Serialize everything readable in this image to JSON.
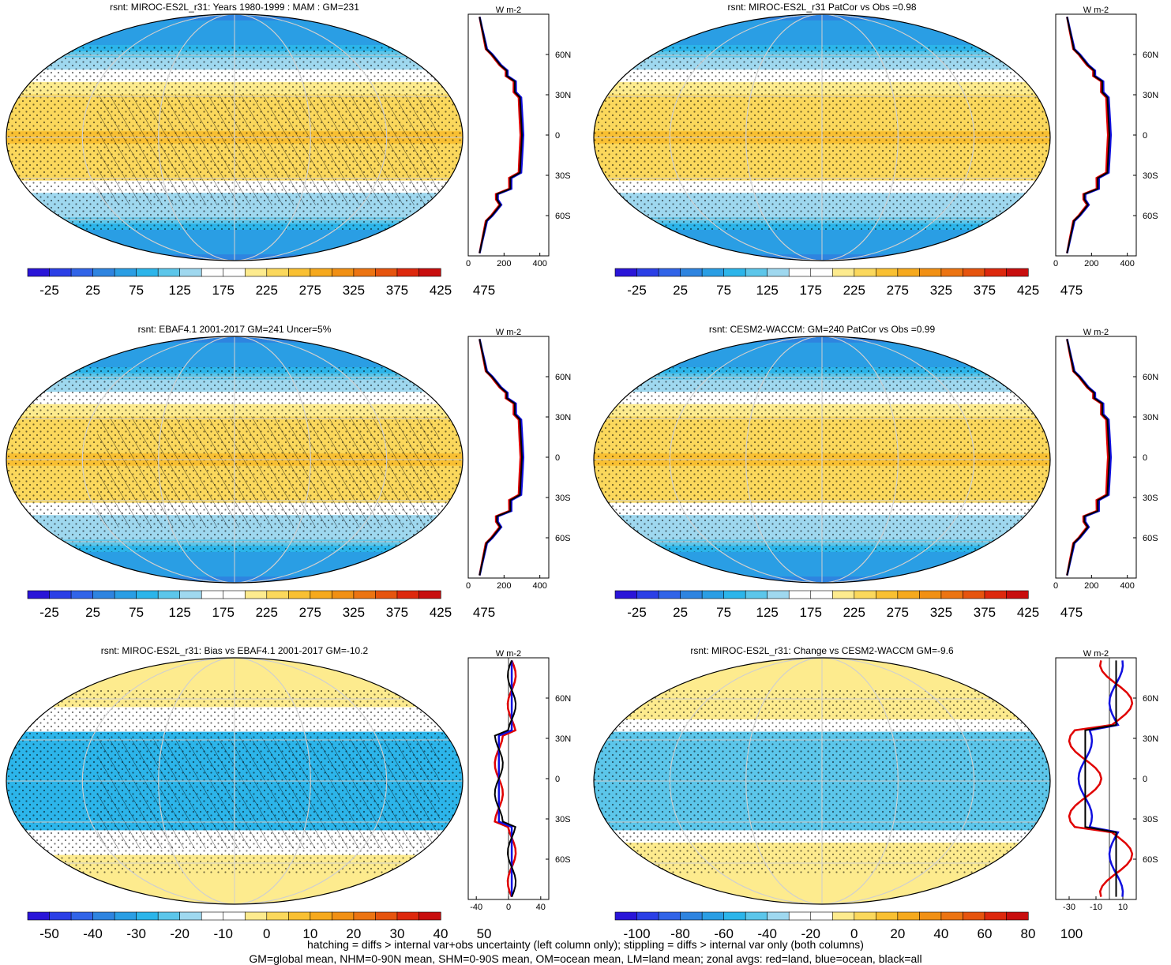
{
  "chart_data": [
    {
      "type": "heatmap",
      "title": "rsnt: MIROC-ES2L_r31: Years 1980-1999 : MAM : GM=231",
      "colorbar": {
        "labels": [
          "-25",
          "25",
          "75",
          "125",
          "175",
          "225",
          "275",
          "325",
          "375",
          "425",
          "475"
        ],
        "range": [
          -50,
          500
        ],
        "colormap": "blue-white-yellow-red"
      },
      "zonal": {
        "units_label": "W m-2",
        "x_ticks": [
          "0",
          "200",
          "400"
        ],
        "xlim": [
          0,
          450
        ],
        "lat_ticks": [
          "60N",
          "30N",
          "0",
          "30S",
          "60S"
        ],
        "series": [
          {
            "name": "red",
            "color": "#e00000"
          },
          {
            "name": "blue",
            "color": "#1010e0"
          },
          {
            "name": "black",
            "color": "#000000"
          }
        ]
      },
      "map_field": "climatology",
      "hatching": true,
      "stippling": true
    },
    {
      "type": "heatmap",
      "title": "rsnt: MIROC-ES2L_r31 PatCor vs Obs =0.98",
      "colorbar": {
        "labels": [
          "-25",
          "25",
          "75",
          "125",
          "175",
          "225",
          "275",
          "325",
          "375",
          "425",
          "475"
        ],
        "range": [
          -50,
          500
        ],
        "colormap": "blue-white-yellow-red"
      },
      "zonal": {
        "units_label": "W m-2",
        "x_ticks": [
          "0",
          "200",
          "400"
        ],
        "xlim": [
          0,
          450
        ],
        "lat_ticks": [
          "60N",
          "30N",
          "0",
          "30S",
          "60S"
        ],
        "series": [
          {
            "name": "red",
            "color": "#e00000"
          },
          {
            "name": "blue",
            "color": "#1010e0"
          },
          {
            "name": "black",
            "color": "#000000"
          }
        ]
      },
      "map_field": "climatology",
      "hatching": false,
      "stippling": true
    },
    {
      "type": "heatmap",
      "title": "rsnt: EBAF4.1 2001-2017 GM=241 Uncer=5%",
      "colorbar": {
        "labels": [
          "-25",
          "25",
          "75",
          "125",
          "175",
          "225",
          "275",
          "325",
          "375",
          "425",
          "475"
        ],
        "range": [
          -50,
          500
        ],
        "colormap": "blue-white-yellow-red"
      },
      "zonal": {
        "units_label": "W m-2",
        "x_ticks": [
          "0",
          "200",
          "400"
        ],
        "xlim": [
          0,
          450
        ],
        "lat_ticks": [
          "60N",
          "30N",
          "0",
          "30S",
          "60S"
        ],
        "series": [
          {
            "name": "red",
            "color": "#e00000"
          },
          {
            "name": "blue",
            "color": "#1010e0"
          },
          {
            "name": "black",
            "color": "#000000"
          }
        ]
      },
      "map_field": "climatology",
      "hatching": true,
      "stippling": true
    },
    {
      "type": "heatmap",
      "title": "rsnt: CESM2-WACCM: GM=240 PatCor vs Obs =0.99",
      "colorbar": {
        "labels": [
          "-25",
          "25",
          "75",
          "125",
          "175",
          "225",
          "275",
          "325",
          "375",
          "425",
          "475"
        ],
        "range": [
          -50,
          500
        ],
        "colormap": "blue-white-yellow-red"
      },
      "zonal": {
        "units_label": "W m-2",
        "x_ticks": [
          "0",
          "200",
          "400"
        ],
        "xlim": [
          0,
          450
        ],
        "lat_ticks": [
          "60N",
          "30N",
          "0",
          "30S",
          "60S"
        ],
        "series": [
          {
            "name": "red",
            "color": "#e00000"
          },
          {
            "name": "blue",
            "color": "#1010e0"
          },
          {
            "name": "black",
            "color": "#000000"
          }
        ]
      },
      "map_field": "climatology",
      "hatching": false,
      "stippling": true
    },
    {
      "type": "heatmap",
      "title": "rsnt: MIROC-ES2L_r31: Bias vs EBAF4.1 2001-2017 GM=-10.2",
      "colorbar": {
        "labels": [
          "-50",
          "-40",
          "-30",
          "-20",
          "-10",
          "0",
          "10",
          "20",
          "30",
          "40",
          "50"
        ],
        "range": [
          -55,
          55
        ],
        "colormap": "blue-white-yellow-red"
      },
      "zonal": {
        "units_label": "W m-2",
        "x_ticks": [
          "-40",
          "0",
          "40"
        ],
        "xlim": [
          -50,
          50
        ],
        "lat_ticks": [
          "60N",
          "30N",
          "0",
          "30S",
          "60S"
        ],
        "series": [
          {
            "name": "red",
            "color": "#e00000"
          },
          {
            "name": "blue",
            "color": "#1010e0"
          },
          {
            "name": "black",
            "color": "#000000"
          }
        ]
      },
      "map_field": "bias",
      "hatching": true,
      "stippling": true
    },
    {
      "type": "heatmap",
      "title": "rsnt: MIROC-ES2L_r31: Change vs CESM2-WACCM GM=-9.6",
      "colorbar": {
        "labels": [
          "-100",
          "-80",
          "-60",
          "-40",
          "-20",
          "0",
          "20",
          "40",
          "60",
          "80",
          "100"
        ],
        "range": [
          -110,
          110
        ],
        "colormap": "blue-white-yellow-red"
      },
      "zonal": {
        "units_label": "W m-2",
        "x_ticks": [
          "-30",
          "-10",
          "10"
        ],
        "xlim": [
          -40,
          20
        ],
        "lat_ticks": [
          "60N",
          "30N",
          "0",
          "30S",
          "60S"
        ],
        "series": [
          {
            "name": "red",
            "color": "#e00000"
          },
          {
            "name": "blue",
            "color": "#1010e0"
          },
          {
            "name": "black",
            "color": "#000000"
          }
        ]
      },
      "map_field": "change",
      "hatching": false,
      "stippling": true
    }
  ],
  "footer": {
    "line1": "hatching = diffs > internal var+obs uncertainty (left column only); stippling = diffs > internal var only (both columns)",
    "line2": "GM=global mean, NHM=0-90N mean, SHM=0-90S mean, OM=ocean mean, LM=land mean; zonal avgs: red=land, blue=ocean, black=all"
  },
  "palette": [
    "#2a15d8",
    "#2b3fe6",
    "#3164e8",
    "#2e84e0",
    "#2a9ee4",
    "#2cb5ea",
    "#5cc6ea",
    "#9fd8ef",
    "#ffffff",
    "#ffffff",
    "#fdeb8e",
    "#fbd85c",
    "#f9c032",
    "#f6a91d",
    "#f19014",
    "#ec7412",
    "#e6540e",
    "#dd280d",
    "#c80e0e"
  ]
}
